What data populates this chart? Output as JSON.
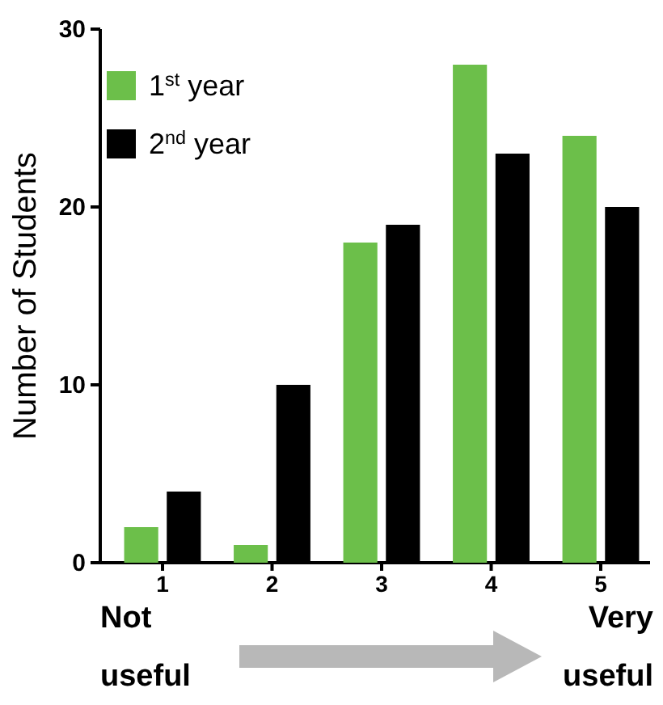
{
  "chart_data": {
    "type": "bar",
    "ylabel": "Number of Students",
    "categories": [
      "1",
      "2",
      "3",
      "4",
      "5"
    ],
    "series": [
      {
        "name": "1$^{st}$ year",
        "color": "#6cbf4a",
        "values": [
          2,
          1,
          18,
          28,
          24
        ]
      },
      {
        "name": "2$^{nd}$ year",
        "color": "#000000",
        "values": [
          4,
          10,
          19,
          23,
          20
        ]
      }
    ],
    "ylim": [
      0,
      30
    ],
    "yticks": [
      0,
      10,
      20,
      30
    ],
    "grid": false,
    "legend": "top left",
    "annotations": [
      "Not useful",
      "Very useful"
    ]
  }
}
